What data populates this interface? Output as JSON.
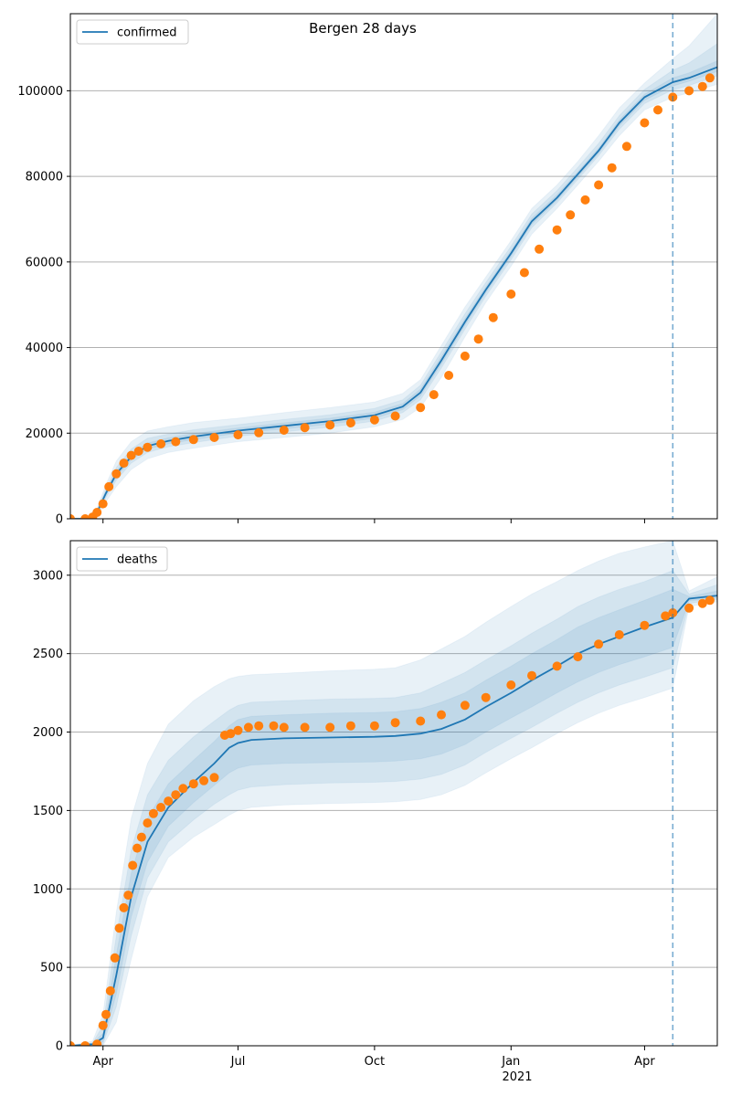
{
  "figure": {
    "title": "Bergen 28 days"
  },
  "colors": {
    "model": "#1f77b4",
    "observed": "#ff7f0e",
    "band": "#1f77b4",
    "grid": "#b0b0b0",
    "cutoff": "#1f77b4"
  },
  "x_axis": {
    "tick_labels": [
      "Apr",
      "Jul",
      "Oct",
      "Jan",
      "Apr"
    ],
    "tick_dates": [
      "2020-04-01",
      "2020-07-01",
      "2020-10-01",
      "2021-01-01",
      "2021-04-01"
    ],
    "year_label": "2021",
    "range": [
      "2020-03-10",
      "2021-05-20"
    ]
  },
  "chart_data": [
    {
      "type": "line",
      "legend": "confirmed",
      "legend_location": "upper left",
      "ylim": [
        0,
        118000
      ],
      "y_ticks": [
        0,
        20000,
        40000,
        60000,
        80000,
        100000
      ],
      "y_tick_labels": [
        "0",
        "20000",
        "40000",
        "60000",
        "80000",
        "100000"
      ],
      "grid": "y",
      "forecast_start": "2021-04-20",
      "model": {
        "x": [
          "2020-03-10",
          "2020-03-20",
          "2020-03-28",
          "2020-04-03",
          "2020-04-10",
          "2020-04-20",
          "2020-05-01",
          "2020-05-15",
          "2020-06-01",
          "2020-07-01",
          "2020-08-01",
          "2020-09-01",
          "2020-10-01",
          "2020-10-20",
          "2020-11-01",
          "2020-11-15",
          "2020-12-01",
          "2020-12-15",
          "2021-01-01",
          "2021-01-15",
          "2021-02-01",
          "2021-02-15",
          "2021-03-01",
          "2021-03-15",
          "2021-04-01",
          "2021-04-20",
          "2021-05-01",
          "2021-05-20"
        ],
        "y": [
          0,
          0,
          1500,
          6000,
          10500,
          14500,
          17000,
          18200,
          19200,
          20600,
          21700,
          22800,
          24200,
          26200,
          29500,
          37000,
          46000,
          53500,
          62000,
          69500,
          75000,
          80500,
          86000,
          92500,
          98500,
          102000,
          103000,
          105500
        ]
      },
      "bands": [
        {
          "lower": [
            0,
            0,
            500,
            4000,
            7500,
            11500,
            14000,
            15500,
            16500,
            18000,
            19000,
            20000,
            21500,
            23200,
            26000,
            33000,
            42500,
            50500,
            59000,
            66500,
            72500,
            78000,
            83500,
            89500,
            95500,
            98500,
            99500,
            101500
          ],
          "upper": [
            0,
            0,
            2500,
            8000,
            13500,
            18000,
            20500,
            21500,
            22500,
            23500,
            24800,
            26000,
            27300,
            29300,
            32500,
            40500,
            49500,
            56500,
            65000,
            72500,
            78000,
            83500,
            89500,
            96000,
            101800,
            107500,
            110500,
            118000
          ]
        },
        {
          "lower": [
            0,
            0,
            900,
            5000,
            9000,
            13000,
            15500,
            16800,
            17800,
            19300,
            20300,
            21400,
            22800,
            24800,
            27800,
            35200,
            44300,
            52000,
            60500,
            68000,
            73800,
            79300,
            84800,
            91000,
            97000,
            100200,
            101200,
            103500
          ],
          "upper": [
            0,
            0,
            2100,
            7000,
            12000,
            16300,
            18800,
            19800,
            20800,
            22000,
            23200,
            24300,
            25800,
            27800,
            31200,
            39000,
            47900,
            55200,
            63700,
            71200,
            76700,
            82100,
            87700,
            94200,
            100300,
            104800,
            106500,
            111000
          ]
        },
        {
          "lower": [
            0,
            0,
            1200,
            5500,
            9800,
            13800,
            16300,
            17500,
            18500,
            20000,
            21000,
            22100,
            23500,
            25500,
            28700,
            36100,
            45200,
            52800,
            61300,
            68800,
            74400,
            79900,
            85400,
            91800,
            97800,
            101100,
            102200,
            104500
          ],
          "upper": [
            0,
            0,
            1800,
            6500,
            11200,
            15200,
            17700,
            18900,
            19900,
            21200,
            22400,
            23500,
            24900,
            26900,
            30300,
            37900,
            46800,
            54200,
            62700,
            70200,
            75700,
            81100,
            86600,
            93200,
            99200,
            103000,
            104200,
            107000
          ]
        }
      ],
      "observed": {
        "x": [
          "2020-03-10",
          "2020-03-20",
          "2020-03-25",
          "2020-03-28",
          "2020-04-01",
          "2020-04-05",
          "2020-04-10",
          "2020-04-15",
          "2020-04-20",
          "2020-04-25",
          "2020-05-01",
          "2020-05-10",
          "2020-05-20",
          "2020-06-01",
          "2020-06-15",
          "2020-07-01",
          "2020-07-15",
          "2020-08-01",
          "2020-08-15",
          "2020-09-01",
          "2020-09-15",
          "2020-10-01",
          "2020-10-15",
          "2020-11-01",
          "2020-11-10",
          "2020-11-20",
          "2020-12-01",
          "2020-12-10",
          "2020-12-20",
          "2021-01-01",
          "2021-01-10",
          "2021-01-20",
          "2021-02-01",
          "2021-02-10",
          "2021-02-20",
          "2021-03-01",
          "2021-03-10",
          "2021-03-20",
          "2021-04-01",
          "2021-04-10",
          "2021-04-20",
          "2021-05-01",
          "2021-05-10",
          "2021-05-15"
        ],
        "y": [
          0,
          0,
          400,
          1500,
          3500,
          7500,
          10500,
          13000,
          14800,
          15800,
          16700,
          17500,
          18000,
          18500,
          19000,
          19600,
          20100,
          20700,
          21300,
          21900,
          22400,
          23100,
          24000,
          26000,
          29000,
          33500,
          38000,
          42000,
          47000,
          52500,
          57500,
          63000,
          67500,
          71000,
          74500,
          78000,
          82000,
          87000,
          92500,
          95500,
          98500,
          100000,
          101000,
          103000
        ]
      }
    },
    {
      "type": "line",
      "legend": "deaths",
      "legend_location": "upper left",
      "ylim": [
        0,
        3220
      ],
      "y_ticks": [
        0,
        500,
        1000,
        1500,
        2000,
        2500,
        3000
      ],
      "y_tick_labels": [
        "0",
        "500",
        "1000",
        "1500",
        "2000",
        "2500",
        "3000"
      ],
      "grid": "y",
      "forecast_start": "2021-04-20",
      "model": {
        "x": [
          "2020-03-10",
          "2020-03-25",
          "2020-04-01",
          "2020-04-10",
          "2020-04-20",
          "2020-05-01",
          "2020-05-15",
          "2020-06-01",
          "2020-06-15",
          "2020-06-25",
          "2020-07-01",
          "2020-07-10",
          "2020-08-01",
          "2020-09-01",
          "2020-10-01",
          "2020-10-15",
          "2020-11-01",
          "2020-11-15",
          "2020-12-01",
          "2020-12-15",
          "2021-01-01",
          "2021-01-15",
          "2021-02-01",
          "2021-02-15",
          "2021-03-01",
          "2021-03-15",
          "2021-04-01",
          "2021-04-20",
          "2021-05-01",
          "2021-05-20"
        ],
        "y": [
          0,
          10,
          50,
          450,
          950,
          1300,
          1520,
          1680,
          1800,
          1900,
          1930,
          1950,
          1960,
          1965,
          1970,
          1975,
          1990,
          2020,
          2080,
          2160,
          2250,
          2330,
          2420,
          2500,
          2560,
          2610,
          2670,
          2730,
          2850,
          2870
        ]
      },
      "bands": [
        {
          "lower": [
            0,
            0,
            0,
            150,
            550,
            950,
            1200,
            1330,
            1410,
            1470,
            1500,
            1520,
            1535,
            1545,
            1550,
            1555,
            1570,
            1600,
            1660,
            1740,
            1830,
            1900,
            1990,
            2060,
            2120,
            2170,
            2220,
            2280,
            2800,
            2830
          ],
          "upper": [
            0,
            30,
            200,
            850,
            1450,
            1800,
            2050,
            2200,
            2290,
            2340,
            2355,
            2365,
            2375,
            2390,
            2400,
            2410,
            2460,
            2530,
            2610,
            2700,
            2800,
            2880,
            2960,
            3030,
            3090,
            3140,
            3180,
            3220,
            2900,
            2990
          ]
        },
        {
          "lower": [
            0,
            0,
            10,
            250,
            700,
            1070,
            1300,
            1440,
            1540,
            1600,
            1630,
            1650,
            1665,
            1675,
            1680,
            1685,
            1700,
            1730,
            1790,
            1870,
            1960,
            2030,
            2120,
            2190,
            2250,
            2300,
            2350,
            2410,
            2820,
            2845
          ],
          "upper": [
            0,
            20,
            130,
            700,
            1250,
            1600,
            1820,
            1970,
            2070,
            2140,
            2170,
            2190,
            2200,
            2210,
            2215,
            2220,
            2250,
            2310,
            2380,
            2460,
            2550,
            2630,
            2720,
            2800,
            2860,
            2910,
            2960,
            3030,
            2880,
            2940
          ]
        },
        {
          "lower": [
            0,
            5,
            25,
            330,
            820,
            1170,
            1400,
            1550,
            1660,
            1740,
            1770,
            1790,
            1800,
            1805,
            1810,
            1815,
            1830,
            1860,
            1920,
            2000,
            2090,
            2160,
            2250,
            2320,
            2380,
            2430,
            2480,
            2540,
            2835,
            2855
          ],
          "upper": [
            0,
            15,
            80,
            580,
            1100,
            1450,
            1670,
            1820,
            1940,
            2040,
            2080,
            2100,
            2110,
            2120,
            2125,
            2130,
            2150,
            2190,
            2250,
            2330,
            2420,
            2500,
            2590,
            2670,
            2730,
            2780,
            2840,
            2910,
            2865,
            2900
          ]
        }
      ],
      "observed": {
        "x": [
          "2020-03-10",
          "2020-03-20",
          "2020-03-28",
          "2020-04-01",
          "2020-04-03",
          "2020-04-06",
          "2020-04-09",
          "2020-04-12",
          "2020-04-15",
          "2020-04-18",
          "2020-04-21",
          "2020-04-24",
          "2020-04-27",
          "2020-05-01",
          "2020-05-05",
          "2020-05-10",
          "2020-05-15",
          "2020-05-20",
          "2020-05-25",
          "2020-06-01",
          "2020-06-08",
          "2020-06-15",
          "2020-06-22",
          "2020-06-26",
          "2020-07-01",
          "2020-07-08",
          "2020-07-15",
          "2020-07-25",
          "2020-08-01",
          "2020-08-15",
          "2020-09-01",
          "2020-09-15",
          "2020-10-01",
          "2020-10-15",
          "2020-11-01",
          "2020-11-15",
          "2020-12-01",
          "2020-12-15",
          "2021-01-01",
          "2021-01-15",
          "2021-02-01",
          "2021-02-15",
          "2021-03-01",
          "2021-03-15",
          "2021-04-01",
          "2021-04-15",
          "2021-04-20",
          "2021-05-01",
          "2021-05-10",
          "2021-05-15"
        ],
        "y": [
          0,
          0,
          10,
          130,
          200,
          350,
          560,
          750,
          880,
          960,
          1150,
          1260,
          1330,
          1420,
          1480,
          1520,
          1560,
          1600,
          1640,
          1670,
          1690,
          1710,
          1980,
          1990,
          2010,
          2030,
          2040,
          2040,
          2030,
          2030,
          2030,
          2040,
          2040,
          2060,
          2070,
          2110,
          2170,
          2220,
          2300,
          2360,
          2420,
          2480,
          2560,
          2620,
          2680,
          2740,
          2760,
          2790,
          2820,
          2840
        ]
      }
    }
  ]
}
